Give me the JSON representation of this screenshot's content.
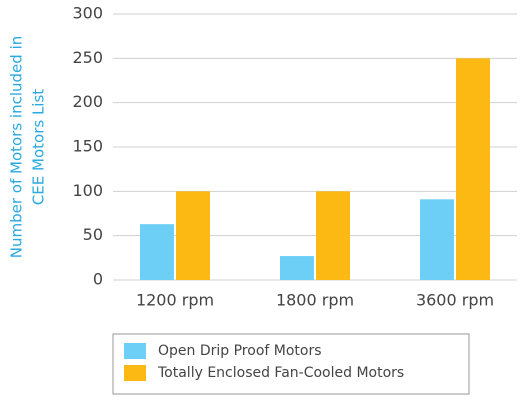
{
  "chart_data": {
    "type": "bar",
    "ylabel": [
      "Number of Motors included in",
      "CEE Motors List"
    ],
    "categories": [
      "1200 rpm",
      "1800 rpm",
      "3600 rpm"
    ],
    "series": [
      {
        "name": "Open Drip Proof Motors",
        "color": "#6dcff6",
        "values": [
          63,
          27,
          91
        ]
      },
      {
        "name": "Totally Enclosed Fan-Cooled Motors",
        "color": "#fdb913",
        "values": [
          100,
          100,
          250
        ]
      }
    ],
    "ylim": [
      0,
      300
    ],
    "yticks": [
      0,
      50,
      100,
      150,
      200,
      250,
      300
    ],
    "grid": true,
    "legend": "bottom"
  }
}
